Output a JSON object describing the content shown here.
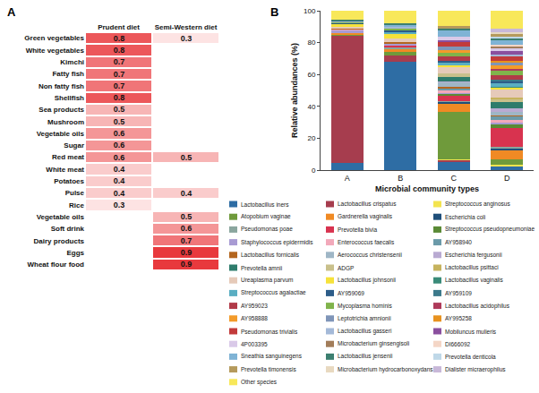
{
  "chart_data": [
    {
      "type": "heatmap",
      "panel": "A",
      "columns": [
        "Prudent diet",
        "Semi-Western diet"
      ],
      "rows": [
        "Green vegetables",
        "White vegetables",
        "Kimchi",
        "Fatty fish",
        "Non fatty fish",
        "Shellfish",
        "Sea products",
        "Mushroom",
        "Vegetable oils",
        "Sugar",
        "Red meat",
        "White meat",
        "Potatoes",
        "Pulse",
        "Rice",
        "Vegetable oils",
        "Soft drink",
        "Dairy products",
        "Eggs",
        "Wheat flour food"
      ],
      "cells": [
        [
          0.8,
          0.3
        ],
        [
          0.8,
          null
        ],
        [
          0.7,
          null
        ],
        [
          0.7,
          null
        ],
        [
          0.7,
          null
        ],
        [
          0.8,
          null
        ],
        [
          0.5,
          null
        ],
        [
          0.5,
          null
        ],
        [
          0.6,
          null
        ],
        [
          0.6,
          null
        ],
        [
          0.6,
          0.5
        ],
        [
          0.4,
          null
        ],
        [
          0.4,
          null
        ],
        [
          0.4,
          0.4
        ],
        [
          0.3,
          null
        ],
        [
          null,
          0.5
        ],
        [
          null,
          0.6
        ],
        [
          null,
          0.7
        ],
        [
          null,
          0.9
        ],
        [
          null,
          0.9
        ]
      ],
      "data_labels": true
    },
    {
      "type": "bar",
      "panel": "B",
      "stacked": true,
      "legend": "bottom",
      "categories": [
        "A",
        "B",
        "C",
        "D"
      ],
      "xlabel": "Microbial community types",
      "ylabel": "Relative abundances (%)",
      "ylim": [
        0,
        100
      ],
      "yticks": [
        0,
        20,
        40,
        60,
        80,
        100
      ],
      "series": [
        {
          "name": "Lactobacillus iners",
          "color": "#2e6da4",
          "values": [
            4.5,
            68,
            5,
            2
          ]
        },
        {
          "name": "Lactobacillus crispatus",
          "color": "#a63d4e",
          "values": [
            80,
            4,
            1,
            0.5
          ]
        },
        {
          "name": "Streptococcus anginosus",
          "color": "#f3e44f",
          "values": [
            0,
            0,
            0.5,
            1
          ]
        },
        {
          "name": "Atopobium vaginae",
          "color": "#6f9a3b",
          "values": [
            0.5,
            2,
            30,
            3
          ]
        },
        {
          "name": "Gardnerella vaginalis",
          "color": "#f08a24",
          "values": [
            1,
            2,
            5,
            6
          ]
        },
        {
          "name": "Escherichia coli",
          "color": "#1f4f7a",
          "values": [
            0,
            0,
            1,
            1
          ]
        },
        {
          "name": "Pseudomonas poae",
          "color": "#8aa69e",
          "values": [
            0,
            1,
            1,
            1
          ]
        },
        {
          "name": "Prevotella bivia",
          "color": "#d8334f",
          "values": [
            0,
            1,
            3,
            12
          ]
        },
        {
          "name": "Streptococcus pseudopneumoniae",
          "color": "#5a8a36",
          "values": [
            0,
            0,
            1,
            2
          ]
        },
        {
          "name": "Staphylococcus epidermidis",
          "color": "#a89bd3",
          "values": [
            1.5,
            1,
            1,
            1
          ]
        },
        {
          "name": "Enterococcus faecalis",
          "color": "#f2a9ba",
          "values": [
            0.5,
            0,
            1.5,
            2
          ]
        },
        {
          "name": "AY958940",
          "color": "#6b9aa9",
          "values": [
            0,
            0,
            1,
            2
          ]
        },
        {
          "name": "Lactobacillus fornicalis",
          "color": "#b4661f",
          "values": [
            0.5,
            1.5,
            1,
            1
          ]
        },
        {
          "name": "Aerococcus christensenii",
          "color": "#9fb6c6",
          "values": [
            0.5,
            0,
            3,
            2
          ]
        },
        {
          "name": "Escherichia fergusonii",
          "color": "#b9aad2",
          "values": [
            0,
            0,
            0.5,
            2
          ]
        },
        {
          "name": "Prevotella amnii",
          "color": "#2e7c6c",
          "values": [
            0,
            0,
            3,
            4
          ]
        },
        {
          "name": "ADGP",
          "color": "#c9c08b",
          "values": [
            0,
            0,
            2,
            2
          ]
        },
        {
          "name": "Lactobacillus psittaci",
          "color": "#c6b35e",
          "values": [
            0,
            0,
            0,
            1
          ]
        },
        {
          "name": "Ureaplasma parvum",
          "color": "#e6cab9",
          "values": [
            1,
            2,
            4,
            5
          ]
        },
        {
          "name": "Lactobacillus johnsonii",
          "color": "#f6e23a",
          "values": [
            1.5,
            3,
            1,
            1
          ]
        },
        {
          "name": "Lactobacillus vaginalis",
          "color": "#3a8b79",
          "values": [
            0,
            0,
            0,
            1
          ]
        },
        {
          "name": "Streptococcus agalactiae",
          "color": "#5aaec2",
          "values": [
            0,
            1,
            2,
            2
          ]
        },
        {
          "name": "AY959069",
          "color": "#2d5d89",
          "values": [
            0.5,
            1,
            1,
            1
          ]
        },
        {
          "name": "AY959109",
          "color": "#3c7a8b",
          "values": [
            0,
            0,
            0,
            1
          ]
        },
        {
          "name": "AY959023",
          "color": "#b13a48",
          "values": [
            0,
            0,
            3,
            3
          ]
        },
        {
          "name": "Mycoplasma hominis",
          "color": "#80b34b",
          "values": [
            0.5,
            1,
            2,
            3
          ]
        },
        {
          "name": "Lactobacillus acidophilus",
          "color": "#ae3a5a",
          "values": [
            0,
            0,
            0,
            1
          ]
        },
        {
          "name": "AY958888",
          "color": "#f39b2a",
          "values": [
            0,
            0,
            2,
            2
          ]
        },
        {
          "name": "Leptotrichia amnionii",
          "color": "#7f95b8",
          "values": [
            0,
            0,
            2,
            2
          ]
        },
        {
          "name": "AY995258",
          "color": "#e8921f",
          "values": [
            0,
            0,
            0,
            1
          ]
        },
        {
          "name": "Pseudomonas trivialis",
          "color": "#c23b3b",
          "values": [
            0,
            0,
            3,
            3
          ]
        },
        {
          "name": "Lactobacillus gasseri",
          "color": "#a4b9d8",
          "values": [
            1,
            1.5,
            0,
            1
          ]
        },
        {
          "name": "Mobiluncus mulieris",
          "color": "#8a4f9e",
          "values": [
            0,
            0,
            1,
            2
          ]
        },
        {
          "name": "4P003395",
          "color": "#d9c9e8",
          "values": [
            0,
            0,
            2,
            2
          ]
        },
        {
          "name": "Microbacterium ginsengisoli",
          "color": "#a27d5a",
          "values": [
            0,
            0,
            0,
            1
          ]
        },
        {
          "name": "DI666092",
          "color": "#f4d6c6",
          "values": [
            0,
            0,
            0,
            1
          ]
        },
        {
          "name": "Sneathia sanguinegens",
          "color": "#7fb3d5",
          "values": [
            0,
            1,
            4,
            3
          ]
        },
        {
          "name": "Lactobacillus jensenii",
          "color": "#3c7f70",
          "values": [
            1,
            1,
            1,
            1
          ]
        },
        {
          "name": "Prevotella denticola",
          "color": "#bfd8e8",
          "values": [
            0,
            0,
            0,
            1
          ]
        },
        {
          "name": "Prevotella timonensis",
          "color": "#b59a5c",
          "values": [
            0,
            0,
            2,
            2
          ]
        },
        {
          "name": "Microbacterium hydrocarbonoxydans",
          "color": "#e8d9c0",
          "values": [
            0,
            0,
            0,
            1
          ]
        },
        {
          "name": "Dialister micraerophilus",
          "color": "#c8b8d8",
          "values": [
            0,
            0,
            0,
            2
          ]
        },
        {
          "name": "Other species",
          "color": "#f8e85a",
          "values": [
            5.5,
            8,
            9.5,
            11.5
          ]
        }
      ]
    }
  ]
}
